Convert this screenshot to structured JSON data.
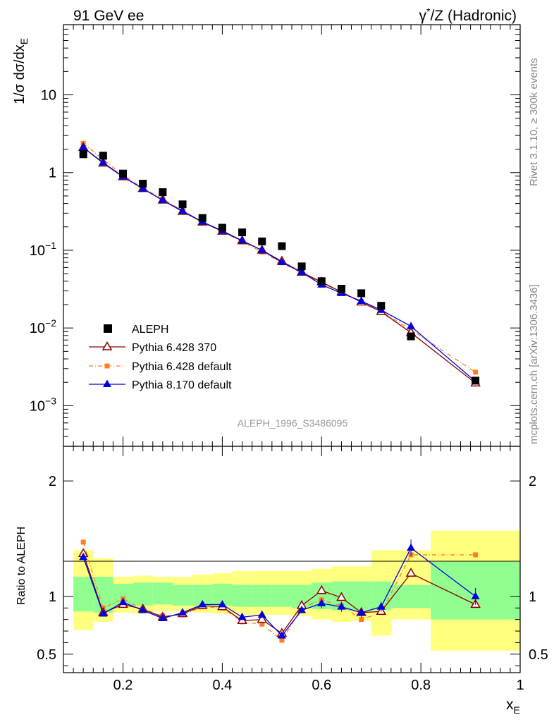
{
  "header": {
    "left": "91 GeV ee",
    "right_prefix": "γ",
    "right_sup": "*",
    "right_suffix": "/Z (Hadronic)"
  },
  "side": {
    "rivet": "Rivet 3.1.10, ≥ 300k events",
    "mcplots": "mcplots.cern.ch [arXiv:1306.3436]"
  },
  "watermark": "ALEPH_1996_S3486095",
  "chart_data": [
    {
      "type": "scatter",
      "name": "main",
      "yscale": "log",
      "ylabel": {
        "main": "1/σ dσ/dx",
        "sub": "E"
      },
      "xlim": [
        0.08,
        1.0
      ],
      "ylim": [
        0.0003,
        80
      ],
      "yticks": [
        {
          "value": 10,
          "base": "10",
          "exp": ""
        },
        {
          "value": 1,
          "base": "1",
          "exp": ""
        },
        {
          "value": 0.1,
          "base": "10",
          "exp": "−1"
        },
        {
          "value": 0.01,
          "base": "10",
          "exp": "−2"
        },
        {
          "value": 0.001,
          "base": "10",
          "exp": "−3"
        }
      ],
      "x": [
        0.12,
        0.16,
        0.2,
        0.24,
        0.28,
        0.32,
        0.36,
        0.4,
        0.44,
        0.48,
        0.52,
        0.56,
        0.6,
        0.64,
        0.68,
        0.72,
        0.78,
        0.91
      ],
      "series": [
        {
          "name": "ALEPH",
          "marker": "square",
          "color": "#000000",
          "values": [
            1.72,
            1.65,
            0.97,
            0.72,
            0.56,
            0.39,
            0.26,
            0.195,
            0.17,
            0.13,
            0.113,
            0.062,
            0.04,
            0.032,
            0.028,
            0.0193,
            0.0078,
            0.0021
          ]
        },
        {
          "name": "Pythia 6.428 370",
          "marker": "open-triangle",
          "color": "#8b0000",
          "dash": "",
          "values": [
            2.1,
            1.32,
            0.88,
            0.62,
            0.44,
            0.315,
            0.23,
            0.175,
            0.132,
            0.1,
            0.072,
            0.052,
            0.039,
            0.029,
            0.0215,
            0.0162,
            0.0087,
            0.00195
          ]
        },
        {
          "name": "Pythia 6.428 default",
          "marker": "filled-square-small",
          "color": "#ff7f27",
          "dash": "6,3,1,3",
          "values": [
            2.38,
            1.47,
            0.93,
            0.63,
            0.46,
            0.32,
            0.232,
            0.175,
            0.128,
            0.095,
            0.069,
            0.051,
            0.038,
            0.029,
            0.0219,
            0.0163,
            0.0095,
            0.0027
          ]
        },
        {
          "name": "Pythia 8.170 default",
          "marker": "filled-triangle",
          "color": "#0000dd",
          "dash": "",
          "values": [
            2.1,
            1.34,
            0.89,
            0.62,
            0.44,
            0.32,
            0.232,
            0.178,
            0.133,
            0.1,
            0.07,
            0.052,
            0.036,
            0.028,
            0.0222,
            0.017,
            0.0105,
            0.00205
          ]
        }
      ]
    },
    {
      "type": "scatter",
      "name": "ratio",
      "ylabel": "Ratio to ALEPH",
      "xlabel": {
        "main": "x",
        "sub": "E"
      },
      "xlim": [
        0.08,
        1.0
      ],
      "ylim": [
        0.34,
        2.3
      ],
      "yticks": [
        0.5,
        1,
        2
      ],
      "yticklabels": [
        "0.5",
        "1",
        "2"
      ],
      "xticks": [
        0.2,
        0.4,
        0.6,
        0.8,
        1.0
      ],
      "xticklabels": [
        "0.2",
        "0.4",
        "0.6",
        "0.8",
        "1"
      ],
      "bins": [
        [
          0.1,
          0.14
        ],
        [
          0.14,
          0.18
        ],
        [
          0.18,
          0.22
        ],
        [
          0.22,
          0.26
        ],
        [
          0.26,
          0.3
        ],
        [
          0.3,
          0.34
        ],
        [
          0.34,
          0.38
        ],
        [
          0.38,
          0.42
        ],
        [
          0.42,
          0.46
        ],
        [
          0.46,
          0.5
        ],
        [
          0.5,
          0.54
        ],
        [
          0.54,
          0.58
        ],
        [
          0.58,
          0.62
        ],
        [
          0.62,
          0.66
        ],
        [
          0.66,
          0.7
        ],
        [
          0.7,
          0.74
        ],
        [
          0.74,
          0.82
        ],
        [
          0.82,
          1.0
        ]
      ],
      "band_green": [
        [
          0.87,
          1.17
        ],
        [
          0.86,
          1.17
        ],
        [
          0.92,
          1.11
        ],
        [
          0.92,
          1.12
        ],
        [
          0.93,
          1.12
        ],
        [
          0.92,
          1.1
        ],
        [
          0.92,
          1.1
        ],
        [
          0.92,
          1.11
        ],
        [
          0.91,
          1.1
        ],
        [
          0.91,
          1.1
        ],
        [
          0.91,
          1.1
        ],
        [
          0.9,
          1.1
        ],
        [
          0.89,
          1.12
        ],
        [
          0.88,
          1.13
        ],
        [
          0.88,
          1.13
        ],
        [
          0.88,
          1.13
        ],
        [
          0.9,
          1.1
        ],
        [
          0.8,
          1.3
        ]
      ],
      "band_yellow": [
        [
          0.71,
          1.4
        ],
        [
          0.78,
          1.33
        ],
        [
          0.86,
          1.17
        ],
        [
          0.85,
          1.18
        ],
        [
          0.87,
          1.17
        ],
        [
          0.87,
          1.17
        ],
        [
          0.86,
          1.19
        ],
        [
          0.85,
          1.2
        ],
        [
          0.84,
          1.22
        ],
        [
          0.84,
          1.22
        ],
        [
          0.84,
          1.22
        ],
        [
          0.83,
          1.22
        ],
        [
          0.8,
          1.24
        ],
        [
          0.78,
          1.26
        ],
        [
          0.79,
          1.26
        ],
        [
          0.66,
          1.4
        ],
        [
          0.8,
          1.4
        ],
        [
          0.53,
          1.57
        ]
      ],
      "series": [
        {
          "name": "Pythia 6.428 370",
          "color": "#8b0000",
          "values": [
            1.37,
            0.86,
            0.93,
            0.89,
            0.82,
            0.85,
            0.92,
            0.91,
            0.79,
            0.8,
            0.68,
            0.92,
            1.05,
            0.99,
            0.86,
            0.87,
            1.2,
            0.93
          ]
        },
        {
          "name": "Pythia 6.428 default",
          "color": "#ff7f27",
          "values": [
            1.47,
            0.9,
            0.98,
            0.89,
            0.83,
            0.84,
            0.91,
            0.9,
            0.78,
            0.76,
            0.62,
            0.9,
            0.97,
            0.92,
            0.8,
            0.86,
            1.36,
            1.36
          ]
        },
        {
          "name": "Pythia 8.170 default",
          "color": "#0000dd",
          "values": [
            1.34,
            0.85,
            0.95,
            0.88,
            0.81,
            0.86,
            0.93,
            0.93,
            0.82,
            0.84,
            0.66,
            0.88,
            0.94,
            0.91,
            0.86,
            0.91,
            1.42,
            1.0
          ]
        }
      ]
    }
  ]
}
